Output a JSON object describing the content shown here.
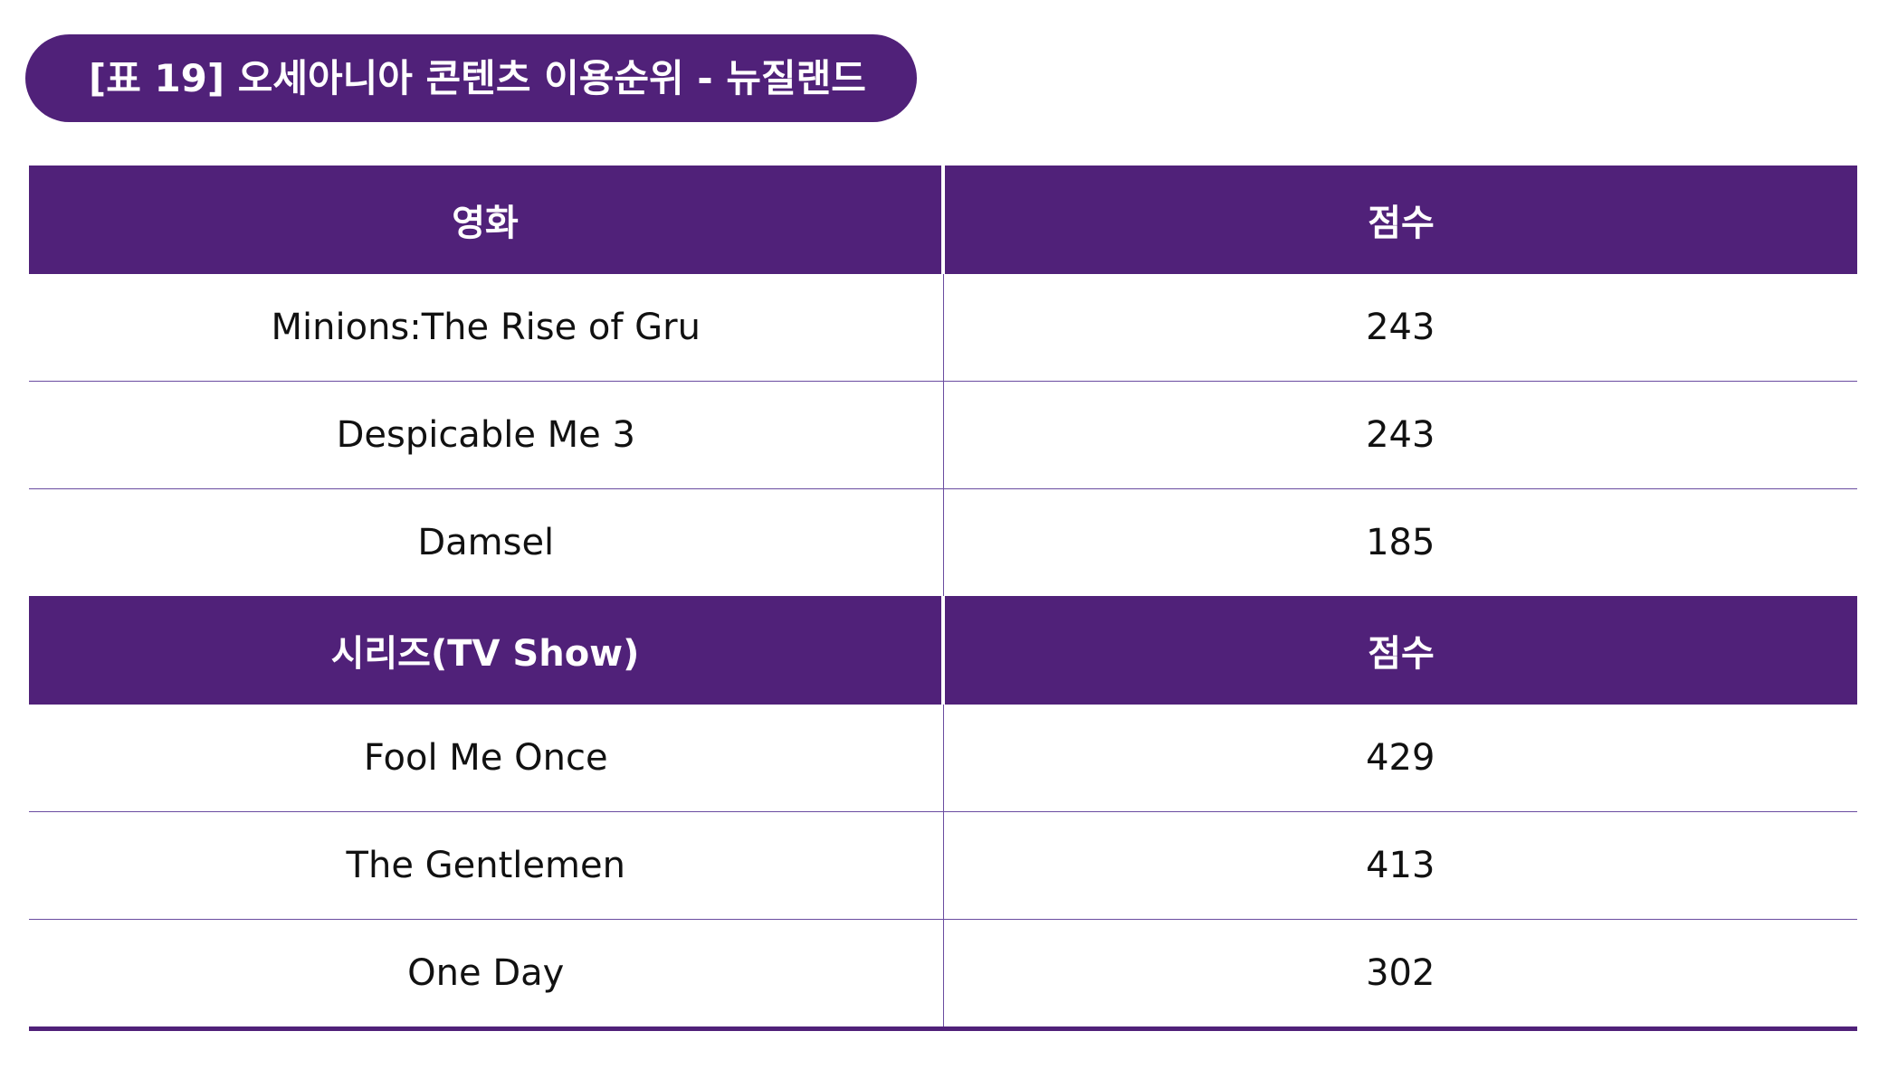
{
  "title": "[표 19] 오세아니아 콘텐츠 이용순위 - 뉴질랜드",
  "colors": {
    "accent": "#502179",
    "row_line": "#6a4ca0",
    "background": "#ffffff",
    "text": "#111111"
  },
  "movies": {
    "header": {
      "name": "영화",
      "score": "점수"
    },
    "rows": [
      {
        "name": "Minions:The Rise of Gru",
        "score": "243"
      },
      {
        "name": "Despicable Me 3",
        "score": "243"
      },
      {
        "name": "Damsel",
        "score": "185"
      }
    ]
  },
  "series": {
    "header": {
      "name": "시리즈(TV Show)",
      "score": "점수"
    },
    "rows": [
      {
        "name": "Fool Me Once",
        "score": "429"
      },
      {
        "name": "The Gentlemen",
        "score": "413"
      },
      {
        "name": "One Day",
        "score": "302"
      }
    ]
  }
}
